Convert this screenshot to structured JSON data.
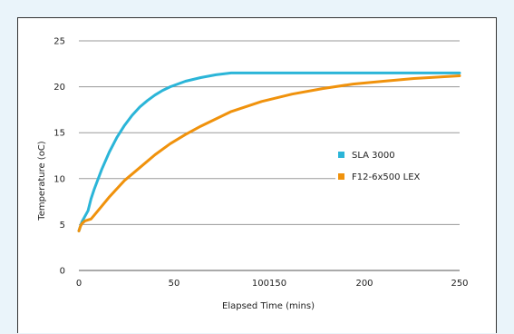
{
  "chart_data": {
    "type": "line",
    "title": "",
    "xlabel": "Elapsed Time (mins)",
    "ylabel": "Temperature (oC)",
    "xlim": [
      0,
      250
    ],
    "ylim": [
      0,
      25
    ],
    "x_tick_labels": [
      "0",
      "50",
      "100150",
      "200",
      "250"
    ],
    "y_tick_labels": [
      "0",
      "5",
      "10",
      "15",
      "20",
      "25"
    ],
    "grid": "horizontal",
    "legend_position": "right",
    "series": [
      {
        "name": "SLA 3000",
        "color": "#2bb5d8",
        "x": [
          0,
          1,
          2,
          4,
          6,
          8,
          10,
          15,
          20,
          25,
          30,
          35,
          40,
          45,
          50,
          55,
          60,
          70,
          80,
          90,
          100,
          120,
          150,
          200,
          250
        ],
        "y": [
          4.3,
          4.8,
          5.3,
          5.9,
          6.5,
          7.8,
          8.8,
          11.0,
          12.9,
          14.5,
          15.8,
          16.9,
          17.8,
          18.5,
          19.1,
          19.6,
          20.0,
          20.6,
          21.0,
          21.3,
          21.5,
          21.5,
          21.5,
          21.5,
          21.5
        ]
      },
      {
        "name": "F12-6x500 LEX",
        "color": "#f0920c",
        "x": [
          0,
          1,
          2,
          4,
          6,
          8,
          10,
          15,
          20,
          30,
          40,
          50,
          60,
          70,
          80,
          90,
          100,
          120,
          140,
          160,
          180,
          200,
          220,
          240,
          250
        ],
        "y": [
          4.3,
          4.8,
          5.1,
          5.4,
          5.5,
          5.6,
          6.0,
          7.0,
          8.0,
          9.8,
          11.2,
          12.6,
          13.8,
          14.8,
          15.7,
          16.5,
          17.3,
          18.4,
          19.2,
          19.8,
          20.3,
          20.6,
          20.9,
          21.1,
          21.2
        ]
      }
    ]
  }
}
